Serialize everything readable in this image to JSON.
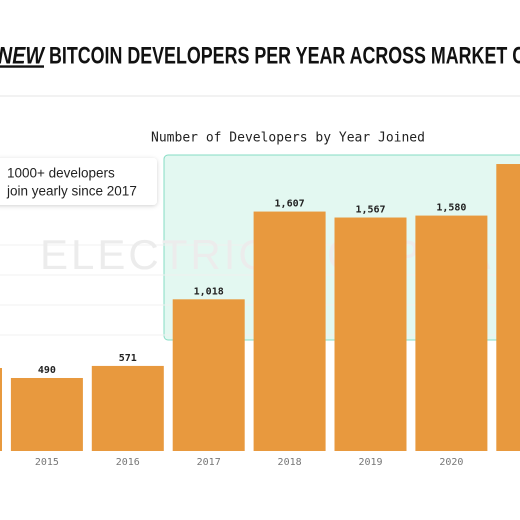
{
  "chart_data": {
    "type": "bar",
    "title_emphasis": "NEW",
    "title": "BITCOIN DEVELOPERS PER YEAR ACROSS MARKET CO",
    "subtitle": "Number of Developers by Year Joined",
    "annotation": [
      "1000+ developers",
      "join yearly since 2017"
    ],
    "watermark": "ELECTRIC⚡CAPITAL",
    "categories": [
      null,
      "2015",
      "2016",
      "2017",
      "2018",
      "2019",
      "2020",
      null
    ],
    "values": [
      557,
      490,
      571,
      1018,
      1607,
      1567,
      1580,
      1926
    ],
    "value_labels": [
      null,
      "490",
      "571",
      "1,018",
      "1,607",
      "1,567",
      "1,580",
      null
    ],
    "color": "#e8993e"
  }
}
